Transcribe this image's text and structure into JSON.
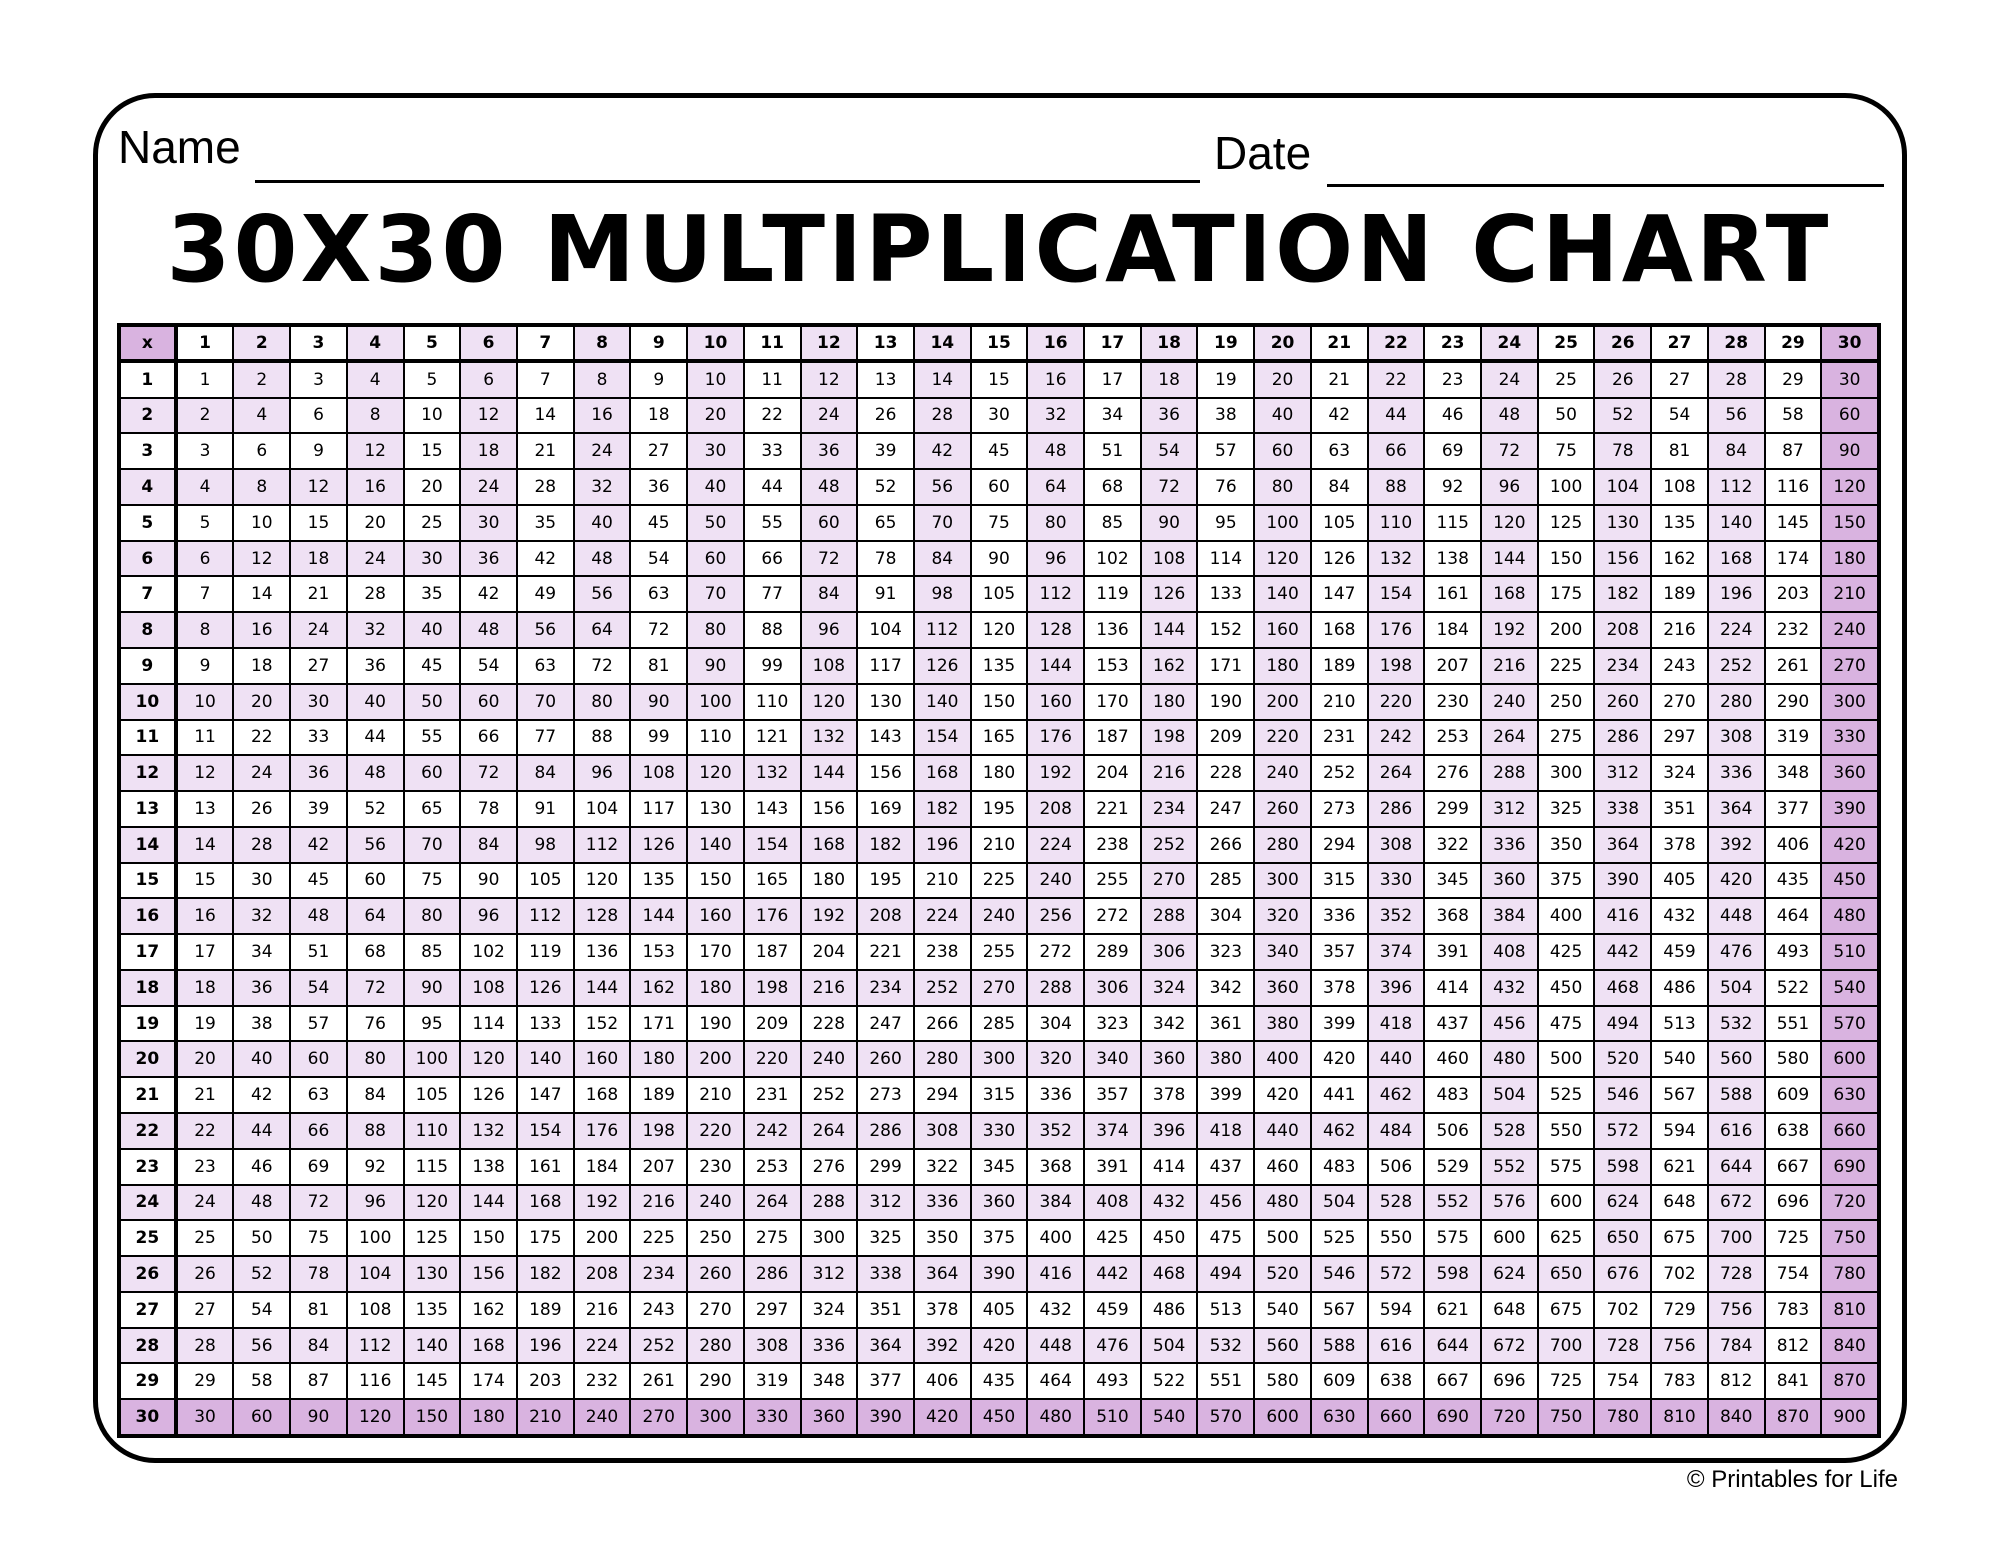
{
  "header": {
    "name_label": "Name",
    "date_label": "Date"
  },
  "title": "30X30 MULTIPLICATION CHART",
  "footer": "© Printables for Life",
  "colors": {
    "light": "#efe1f4",
    "dark": "#d9b3e0",
    "white": "#ffffff",
    "border": "#000000"
  },
  "table": {
    "corner": "x",
    "col_headers": [
      1,
      2,
      3,
      4,
      5,
      6,
      7,
      8,
      9,
      10,
      11,
      12,
      13,
      14,
      15,
      16,
      17,
      18,
      19,
      20,
      21,
      22,
      23,
      24,
      25,
      26,
      27,
      28,
      29,
      30
    ],
    "row_headers": [
      1,
      2,
      3,
      4,
      5,
      6,
      7,
      8,
      9,
      10,
      11,
      12,
      13,
      14,
      15,
      16,
      17,
      18,
      19,
      20,
      21,
      22,
      23,
      24,
      25,
      26,
      27,
      28,
      29,
      30
    ],
    "rows": [
      [
        1,
        2,
        3,
        4,
        5,
        6,
        7,
        8,
        9,
        10,
        11,
        12,
        13,
        14,
        15,
        16,
        17,
        18,
        19,
        20,
        21,
        22,
        23,
        24,
        25,
        26,
        27,
        28,
        29,
        30
      ],
      [
        2,
        4,
        6,
        8,
        10,
        12,
        14,
        16,
        18,
        20,
        22,
        24,
        26,
        28,
        30,
        32,
        34,
        36,
        38,
        40,
        42,
        44,
        46,
        48,
        50,
        52,
        54,
        56,
        58,
        60
      ],
      [
        3,
        6,
        9,
        12,
        15,
        18,
        21,
        24,
        27,
        30,
        33,
        36,
        39,
        42,
        45,
        48,
        51,
        54,
        57,
        60,
        63,
        66,
        69,
        72,
        75,
        78,
        81,
        84,
        87,
        90
      ],
      [
        4,
        8,
        12,
        16,
        20,
        24,
        28,
        32,
        36,
        40,
        44,
        48,
        52,
        56,
        60,
        64,
        68,
        72,
        76,
        80,
        84,
        88,
        92,
        96,
        100,
        104,
        108,
        112,
        116,
        120
      ],
      [
        5,
        10,
        15,
        20,
        25,
        30,
        35,
        40,
        45,
        50,
        55,
        60,
        65,
        70,
        75,
        80,
        85,
        90,
        95,
        100,
        105,
        110,
        115,
        120,
        125,
        130,
        135,
        140,
        145,
        150
      ],
      [
        6,
        12,
        18,
        24,
        30,
        36,
        42,
        48,
        54,
        60,
        66,
        72,
        78,
        84,
        90,
        96,
        102,
        108,
        114,
        120,
        126,
        132,
        138,
        144,
        150,
        156,
        162,
        168,
        174,
        180
      ],
      [
        7,
        14,
        21,
        28,
        35,
        42,
        49,
        56,
        63,
        70,
        77,
        84,
        91,
        98,
        105,
        112,
        119,
        126,
        133,
        140,
        147,
        154,
        161,
        168,
        175,
        182,
        189,
        196,
        203,
        210
      ],
      [
        8,
        16,
        24,
        32,
        40,
        48,
        56,
        64,
        72,
        80,
        88,
        96,
        104,
        112,
        120,
        128,
        136,
        144,
        152,
        160,
        168,
        176,
        184,
        192,
        200,
        208,
        216,
        224,
        232,
        240
      ],
      [
        9,
        18,
        27,
        36,
        45,
        54,
        63,
        72,
        81,
        90,
        99,
        108,
        117,
        126,
        135,
        144,
        153,
        162,
        171,
        180,
        189,
        198,
        207,
        216,
        225,
        234,
        243,
        252,
        261,
        270
      ],
      [
        10,
        20,
        30,
        40,
        50,
        60,
        70,
        80,
        90,
        100,
        110,
        120,
        130,
        140,
        150,
        160,
        170,
        180,
        190,
        200,
        210,
        220,
        230,
        240,
        250,
        260,
        270,
        280,
        290,
        300
      ],
      [
        11,
        22,
        33,
        44,
        55,
        66,
        77,
        88,
        99,
        110,
        121,
        132,
        143,
        154,
        165,
        176,
        187,
        198,
        209,
        220,
        231,
        242,
        253,
        264,
        275,
        286,
        297,
        308,
        319,
        330
      ],
      [
        12,
        24,
        36,
        48,
        60,
        72,
        84,
        96,
        108,
        120,
        132,
        144,
        156,
        168,
        180,
        192,
        204,
        216,
        228,
        240,
        252,
        264,
        276,
        288,
        300,
        312,
        324,
        336,
        348,
        360
      ],
      [
        13,
        26,
        39,
        52,
        65,
        78,
        91,
        104,
        117,
        130,
        143,
        156,
        169,
        182,
        195,
        208,
        221,
        234,
        247,
        260,
        273,
        286,
        299,
        312,
        325,
        338,
        351,
        364,
        377,
        390
      ],
      [
        14,
        28,
        42,
        56,
        70,
        84,
        98,
        112,
        126,
        140,
        154,
        168,
        182,
        196,
        210,
        224,
        238,
        252,
        266,
        280,
        294,
        308,
        322,
        336,
        350,
        364,
        378,
        392,
        406,
        420
      ],
      [
        15,
        30,
        45,
        60,
        75,
        90,
        105,
        120,
        135,
        150,
        165,
        180,
        195,
        210,
        225,
        240,
        255,
        270,
        285,
        300,
        315,
        330,
        345,
        360,
        375,
        390,
        405,
        420,
        435,
        450
      ],
      [
        16,
        32,
        48,
        64,
        80,
        96,
        112,
        128,
        144,
        160,
        176,
        192,
        208,
        224,
        240,
        256,
        272,
        288,
        304,
        320,
        336,
        352,
        368,
        384,
        400,
        416,
        432,
        448,
        464,
        480
      ],
      [
        17,
        34,
        51,
        68,
        85,
        102,
        119,
        136,
        153,
        170,
        187,
        204,
        221,
        238,
        255,
        272,
        289,
        306,
        323,
        340,
        357,
        374,
        391,
        408,
        425,
        442,
        459,
        476,
        493,
        510
      ],
      [
        18,
        36,
        54,
        72,
        90,
        108,
        126,
        144,
        162,
        180,
        198,
        216,
        234,
        252,
        270,
        288,
        306,
        324,
        342,
        360,
        378,
        396,
        414,
        432,
        450,
        468,
        486,
        504,
        522,
        540
      ],
      [
        19,
        38,
        57,
        76,
        95,
        114,
        133,
        152,
        171,
        190,
        209,
        228,
        247,
        266,
        285,
        304,
        323,
        342,
        361,
        380,
        399,
        418,
        437,
        456,
        475,
        494,
        513,
        532,
        551,
        570
      ],
      [
        20,
        40,
        60,
        80,
        100,
        120,
        140,
        160,
        180,
        200,
        220,
        240,
        260,
        280,
        300,
        320,
        340,
        360,
        380,
        400,
        420,
        440,
        460,
        480,
        500,
        520,
        540,
        560,
        580,
        600
      ],
      [
        21,
        42,
        63,
        84,
        105,
        126,
        147,
        168,
        189,
        210,
        231,
        252,
        273,
        294,
        315,
        336,
        357,
        378,
        399,
        420,
        441,
        462,
        483,
        504,
        525,
        546,
        567,
        588,
        609,
        630
      ],
      [
        22,
        44,
        66,
        88,
        110,
        132,
        154,
        176,
        198,
        220,
        242,
        264,
        286,
        308,
        330,
        352,
        374,
        396,
        418,
        440,
        462,
        484,
        506,
        528,
        550,
        572,
        594,
        616,
        638,
        660
      ],
      [
        23,
        46,
        69,
        92,
        115,
        138,
        161,
        184,
        207,
        230,
        253,
        276,
        299,
        322,
        345,
        368,
        391,
        414,
        437,
        460,
        483,
        506,
        529,
        552,
        575,
        598,
        621,
        644,
        667,
        690
      ],
      [
        24,
        48,
        72,
        96,
        120,
        144,
        168,
        192,
        216,
        240,
        264,
        288,
        312,
        336,
        360,
        384,
        408,
        432,
        456,
        480,
        504,
        528,
        552,
        576,
        600,
        624,
        648,
        672,
        696,
        720
      ],
      [
        25,
        50,
        75,
        100,
        125,
        150,
        175,
        200,
        225,
        250,
        275,
        300,
        325,
        350,
        375,
        400,
        425,
        450,
        475,
        500,
        525,
        550,
        575,
        600,
        625,
        650,
        675,
        700,
        725,
        750
      ],
      [
        26,
        52,
        78,
        104,
        130,
        156,
        182,
        208,
        234,
        260,
        286,
        312,
        338,
        364,
        390,
        416,
        442,
        468,
        494,
        520,
        546,
        572,
        598,
        624,
        650,
        676,
        702,
        728,
        754,
        780
      ],
      [
        27,
        54,
        81,
        108,
        135,
        162,
        189,
        216,
        243,
        270,
        297,
        324,
        351,
        378,
        405,
        432,
        459,
        486,
        513,
        540,
        567,
        594,
        621,
        648,
        675,
        702,
        729,
        756,
        783,
        810
      ],
      [
        28,
        56,
        84,
        112,
        140,
        168,
        196,
        224,
        252,
        280,
        308,
        336,
        364,
        392,
        420,
        448,
        476,
        504,
        532,
        560,
        588,
        616,
        644,
        672,
        700,
        728,
        756,
        784,
        812,
        840
      ],
      [
        29,
        58,
        87,
        116,
        145,
        174,
        203,
        232,
        261,
        290,
        319,
        348,
        377,
        406,
        435,
        464,
        493,
        522,
        551,
        580,
        609,
        638,
        667,
        696,
        725,
        754,
        783,
        812,
        841,
        870
      ],
      [
        30,
        60,
        90,
        120,
        150,
        180,
        210,
        240,
        270,
        300,
        330,
        360,
        390,
        420,
        450,
        480,
        510,
        540,
        570,
        600,
        630,
        660,
        690,
        720,
        750,
        780,
        810,
        840,
        870,
        900
      ]
    ]
  }
}
